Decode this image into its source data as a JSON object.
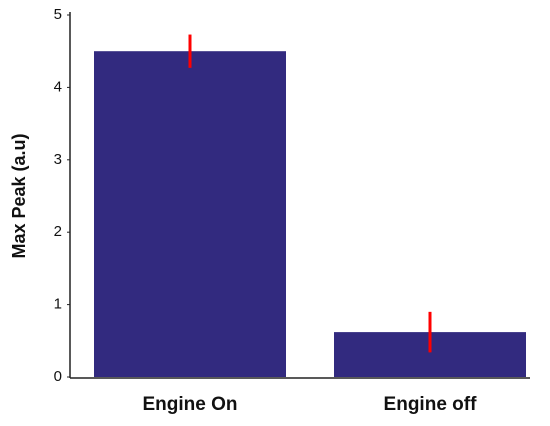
{
  "chart_data": {
    "type": "bar",
    "y_label": "Max Peak (a.u)",
    "categories": [
      "Engine On",
      "Engine off"
    ],
    "values": [
      4.5,
      0.62
    ],
    "errors": [
      0.23,
      0.28
    ],
    "color": "#322a7f",
    "error_color": "#ff0000",
    "ylim": [
      0,
      5
    ],
    "yticks": [
      0,
      1,
      2,
      3,
      4,
      5
    ]
  }
}
